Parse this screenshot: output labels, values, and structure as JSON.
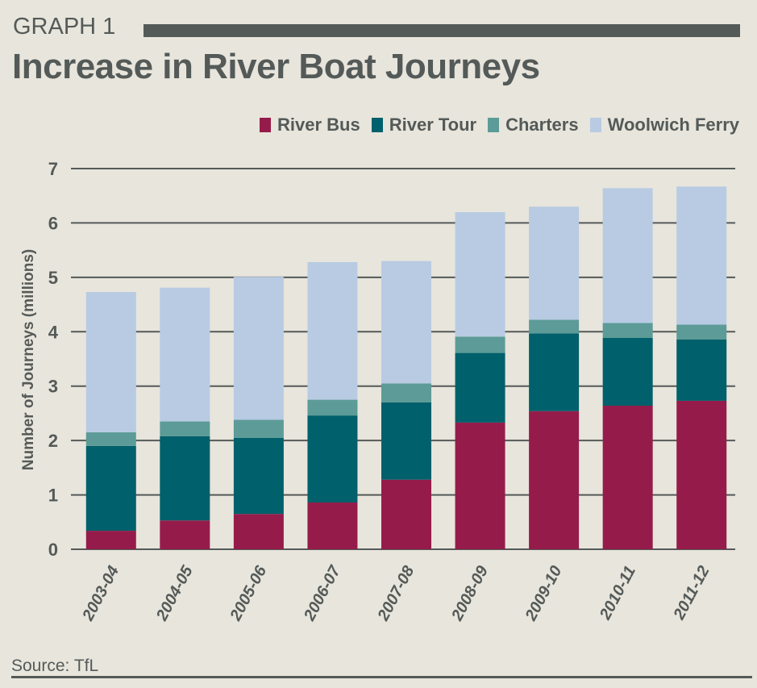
{
  "header": {
    "graph_label": "GRAPH 1",
    "title": "Increase in River Boat Journeys"
  },
  "footer": {
    "source": "Source: TfL"
  },
  "chart_data": {
    "type": "bar",
    "stacked": true,
    "title": "Increase in River Boat Journeys",
    "xlabel": "",
    "ylabel": "Number of Journeys (millions)",
    "ylim": [
      0,
      7
    ],
    "yticks": [
      0,
      1,
      2,
      3,
      4,
      5,
      6,
      7
    ],
    "grid": true,
    "legend_position": "top-right",
    "categories": [
      "2003-04",
      "2004-05",
      "2005-06",
      "2006-07",
      "2007-08",
      "2008-09",
      "2009-10",
      "2010-11",
      "2011-12"
    ],
    "series": [
      {
        "name": "River Bus",
        "color": "#951c4a",
        "values": [
          0.34,
          0.53,
          0.65,
          0.86,
          1.28,
          2.33,
          2.54,
          2.64,
          2.73
        ]
      },
      {
        "name": "River Tour",
        "color": "#00606b",
        "values": [
          1.56,
          1.55,
          1.4,
          1.6,
          1.42,
          1.28,
          1.43,
          1.25,
          1.13
        ]
      },
      {
        "name": "Charters",
        "color": "#5c9b97",
        "values": [
          0.25,
          0.27,
          0.33,
          0.29,
          0.35,
          0.3,
          0.25,
          0.27,
          0.27
        ]
      },
      {
        "name": "Woolwich Ferry",
        "color": "#b8cbe3",
        "values": [
          2.58,
          2.46,
          2.63,
          2.53,
          2.25,
          2.29,
          2.08,
          2.48,
          2.54
        ]
      }
    ]
  }
}
